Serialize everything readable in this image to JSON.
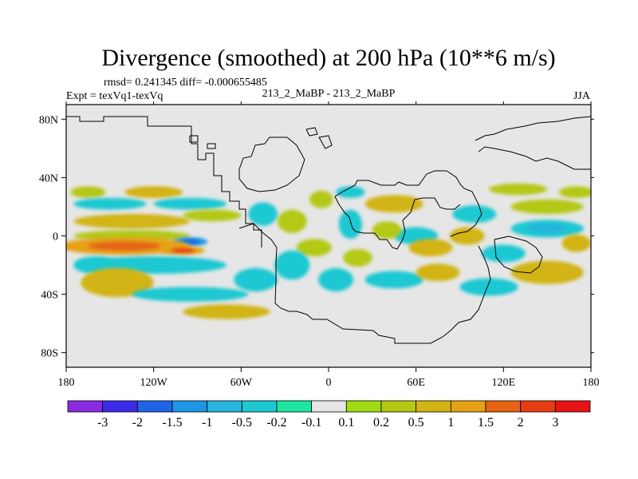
{
  "chart_data": {
    "type": "heatmap",
    "title": "Divergence (smoothed) at 200 hPa (10**6 m/s)",
    "stats_text": "rmsd= 0.241345 diff= -0.000655485",
    "left_label": "Expt = texVq1-texVq",
    "center_label": "213_2_MaBP - 213_2_MaBP",
    "right_label": "JJA",
    "x_axis": {
      "range": [
        -180,
        180
      ],
      "ticks": [
        -180,
        -120,
        -60,
        0,
        60,
        120,
        180
      ],
      "tick_labels": [
        "180",
        "120W",
        "60W",
        "0",
        "60E",
        "120E",
        "180"
      ]
    },
    "y_axis": {
      "range": [
        -90,
        90
      ],
      "ticks": [
        80,
        40,
        0,
        -40,
        -80
      ],
      "tick_labels": [
        "80N",
        "40N",
        "0",
        "40S",
        "80S"
      ]
    },
    "colorbar": {
      "colors": [
        "#8a2be2",
        "#3b2be6",
        "#1e64e6",
        "#1e96e6",
        "#28b4dc",
        "#1ec8d2",
        "#1ee6a0",
        "#e6e6e6",
        "#a0dc14",
        "#b4c814",
        "#d2b414",
        "#e6a014",
        "#e66414",
        "#e63c14",
        "#e61414"
      ],
      "labels": [
        "-3",
        "-2",
        "-1.5",
        "-1",
        "-0.5",
        "-0.2",
        "-0.1",
        "0.1",
        "0.2",
        "0.5",
        "1",
        "1.5",
        "2",
        "3"
      ]
    },
    "features": [
      {
        "lon": -165,
        "lat": 30,
        "rx": 12,
        "ry": 4,
        "v": 0.35
      },
      {
        "lon": -120,
        "lat": 30,
        "rx": 20,
        "ry": 4,
        "v": 0.6
      },
      {
        "lon": -150,
        "lat": 22,
        "rx": 25,
        "ry": 4,
        "v": -0.35
      },
      {
        "lon": -95,
        "lat": 22,
        "rx": 25,
        "ry": 4,
        "v": -0.35
      },
      {
        "lon": -135,
        "lat": 10,
        "rx": 40,
        "ry": 5,
        "v": 0.6
      },
      {
        "lon": -80,
        "lat": 14,
        "rx": 20,
        "ry": 4,
        "v": 0.4
      },
      {
        "lon": -135,
        "lat": 0,
        "rx": 40,
        "ry": 4,
        "v": 0.45
      },
      {
        "lon": -95,
        "lat": -4,
        "rx": 12,
        "ry": 3,
        "v": -1.2
      },
      {
        "lon": -140,
        "lat": -7,
        "rx": 45,
        "ry": 6,
        "v": 1.0
      },
      {
        "lon": -100,
        "lat": -10,
        "rx": 15,
        "ry": 3,
        "v": 1.3
      },
      {
        "lon": -120,
        "lat": -20,
        "rx": 50,
        "ry": 6,
        "v": -0.35
      },
      {
        "lon": -160,
        "lat": -20,
        "rx": 15,
        "ry": 6,
        "v": -0.35
      },
      {
        "lon": -145,
        "lat": -32,
        "rx": 25,
        "ry": 10,
        "v": 0.6
      },
      {
        "lon": -95,
        "lat": -40,
        "rx": 40,
        "ry": 5,
        "v": -0.35
      },
      {
        "lon": -50,
        "lat": -30,
        "rx": 15,
        "ry": 8,
        "v": -0.3
      },
      {
        "lon": -70,
        "lat": -52,
        "rx": 30,
        "ry": 5,
        "v": 0.55
      },
      {
        "lon": -45,
        "lat": 15,
        "rx": 10,
        "ry": 8,
        "v": -0.3
      },
      {
        "lon": -25,
        "lat": 10,
        "rx": 10,
        "ry": 8,
        "v": 0.4
      },
      {
        "lon": -10,
        "lat": -8,
        "rx": 12,
        "ry": 6,
        "v": 0.4
      },
      {
        "lon": -25,
        "lat": -20,
        "rx": 12,
        "ry": 10,
        "v": -0.35
      },
      {
        "lon": 5,
        "lat": -30,
        "rx": 12,
        "ry": 8,
        "v": -0.3
      },
      {
        "lon": -5,
        "lat": 25,
        "rx": 8,
        "ry": 6,
        "v": 0.4
      },
      {
        "lon": 15,
        "lat": 8,
        "rx": 8,
        "ry": 10,
        "v": -0.3
      },
      {
        "lon": 15,
        "lat": 30,
        "rx": 10,
        "ry": 4,
        "v": -0.3
      },
      {
        "lon": 45,
        "lat": 22,
        "rx": 20,
        "ry": 6,
        "v": 0.5
      },
      {
        "lon": 60,
        "lat": 0,
        "rx": 15,
        "ry": 6,
        "v": -0.3
      },
      {
        "lon": 70,
        "lat": -8,
        "rx": 15,
        "ry": 6,
        "v": 0.6
      },
      {
        "lon": 45,
        "lat": -30,
        "rx": 20,
        "ry": 6,
        "v": -0.35
      },
      {
        "lon": 75,
        "lat": -25,
        "rx": 15,
        "ry": 6,
        "v": 0.5
      },
      {
        "lon": 40,
        "lat": 4,
        "rx": 10,
        "ry": 6,
        "v": 0.4
      },
      {
        "lon": 100,
        "lat": 15,
        "rx": 15,
        "ry": 6,
        "v": -0.3
      },
      {
        "lon": 95,
        "lat": 0,
        "rx": 12,
        "ry": 6,
        "v": 0.5
      },
      {
        "lon": 120,
        "lat": -12,
        "rx": 15,
        "ry": 6,
        "v": -0.35
      },
      {
        "lon": 150,
        "lat": -25,
        "rx": 25,
        "ry": 8,
        "v": 0.5
      },
      {
        "lon": 150,
        "lat": 5,
        "rx": 25,
        "ry": 6,
        "v": -0.5
      },
      {
        "lon": 150,
        "lat": 20,
        "rx": 25,
        "ry": 5,
        "v": 0.4
      },
      {
        "lon": 130,
        "lat": 32,
        "rx": 20,
        "ry": 4,
        "v": 0.35
      },
      {
        "lon": 170,
        "lat": 30,
        "rx": 12,
        "ry": 4,
        "v": 0.4
      },
      {
        "lon": 170,
        "lat": -5,
        "rx": 10,
        "ry": 6,
        "v": 0.5
      },
      {
        "lon": 110,
        "lat": -35,
        "rx": 20,
        "ry": 6,
        "v": -0.3
      },
      {
        "lon": 20,
        "lat": -15,
        "rx": 10,
        "ry": 6,
        "v": 0.4
      }
    ]
  }
}
